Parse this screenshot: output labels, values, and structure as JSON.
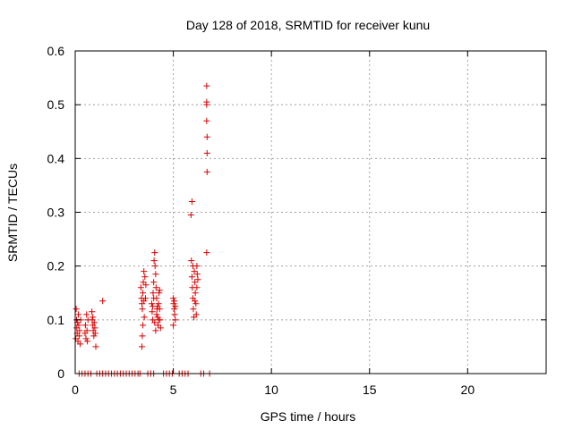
{
  "chart_data": {
    "type": "scatter",
    "title": "Day 128 of 2018, SRMTID for receiver kunu",
    "xlabel": "GPS time / hours",
    "ylabel": "SRMTID / TECUs",
    "xlim": [
      0,
      24
    ],
    "ylim": [
      0,
      0.6
    ],
    "xticks": [
      0,
      5,
      10,
      15,
      20
    ],
    "xtick_labels": [
      "0",
      "5",
      "10",
      "15",
      "20"
    ],
    "yticks": [
      0,
      0.1,
      0.2,
      0.3,
      0.4,
      0.5,
      0.6
    ],
    "ytick_labels": [
      "0",
      "0.1",
      "0.2",
      "0.3",
      "0.4",
      "0.5",
      "0.6"
    ],
    "grid": true,
    "marker": "plus",
    "color": "#dd0000",
    "series": [
      {
        "points": [
          [
            0.03,
            0.065
          ],
          [
            0.05,
            0.12
          ],
          [
            0.07,
            0.1
          ],
          [
            0.08,
            0.085
          ],
          [
            0.1,
            0.075
          ],
          [
            0.12,
            0.095
          ],
          [
            0.14,
            0.06
          ],
          [
            0.16,
            0.11
          ],
          [
            0.18,
            0.09
          ],
          [
            0.2,
            0.07
          ],
          [
            0.22,
            0.08
          ],
          [
            0.25,
            0.055
          ],
          [
            0.28,
            0.1
          ],
          [
            0.5,
            0.075
          ],
          [
            0.52,
            0.09
          ],
          [
            0.55,
            0.065
          ],
          [
            0.58,
            0.11
          ],
          [
            0.6,
            0.08
          ],
          [
            0.62,
            0.06
          ],
          [
            0.65,
            0.1
          ],
          [
            0.85,
            0.115
          ],
          [
            0.87,
            0.1
          ],
          [
            0.9,
            0.09
          ],
          [
            0.92,
            0.08
          ],
          [
            0.95,
            0.07
          ],
          [
            0.97,
            0.095
          ],
          [
            1.0,
            0.085
          ],
          [
            1.02,
            0.075
          ],
          [
            1.05,
            0.05
          ],
          [
            0.9,
            0.105
          ],
          [
            1.4,
            0.135
          ],
          [
            3.35,
            0.16
          ],
          [
            3.38,
            0.14
          ],
          [
            3.4,
            0.13
          ],
          [
            3.42,
            0.12
          ],
          [
            3.45,
            0.15
          ],
          [
            3.47,
            0.17
          ],
          [
            3.5,
            0.135
          ],
          [
            3.52,
            0.105
          ],
          [
            3.55,
            0.18
          ],
          [
            3.45,
            0.09
          ],
          [
            3.42,
            0.07
          ],
          [
            3.4,
            0.05
          ],
          [
            3.5,
            0.19
          ],
          [
            3.58,
            0.14
          ],
          [
            3.6,
            0.165
          ],
          [
            3.9,
            0.13
          ],
          [
            3.92,
            0.115
          ],
          [
            3.95,
            0.1
          ],
          [
            3.97,
            0.15
          ],
          [
            4.0,
            0.17
          ],
          [
            4.02,
            0.21
          ],
          [
            4.05,
            0.225
          ],
          [
            4.07,
            0.2
          ],
          [
            4.1,
            0.185
          ],
          [
            4.12,
            0.16
          ],
          [
            4.15,
            0.14
          ],
          [
            4.17,
            0.12
          ],
          [
            4.2,
            0.105
          ],
          [
            4.22,
            0.09
          ],
          [
            4.25,
            0.13
          ],
          [
            4.27,
            0.15
          ],
          [
            4.3,
            0.12
          ],
          [
            4.32,
            0.1
          ],
          [
            4.35,
            0.085
          ],
          [
            4.1,
            0.08
          ],
          [
            4.05,
            0.095
          ],
          [
            4.15,
            0.11
          ],
          [
            4.2,
            0.125
          ],
          [
            4.3,
            0.155
          ],
          [
            4.0,
            0.14
          ],
          [
            3.95,
            0.125
          ],
          [
            4.25,
            0.1
          ],
          [
            5.0,
            0.14
          ],
          [
            5.02,
            0.13
          ],
          [
            5.05,
            0.12
          ],
          [
            5.07,
            0.11
          ],
          [
            5.1,
            0.1
          ],
          [
            5.0,
            0.09
          ],
          [
            5.05,
            0.135
          ],
          [
            5.1,
            0.125
          ],
          [
            5.9,
            0.295
          ],
          [
            5.95,
            0.32
          ],
          [
            5.92,
            0.21
          ],
          [
            5.95,
            0.18
          ],
          [
            5.97,
            0.16
          ],
          [
            6.0,
            0.14
          ],
          [
            6.02,
            0.12
          ],
          [
            6.05,
            0.105
          ],
          [
            6.07,
            0.19
          ],
          [
            6.1,
            0.17
          ],
          [
            6.12,
            0.15
          ],
          [
            6.15,
            0.13
          ],
          [
            6.17,
            0.11
          ],
          [
            6.2,
            0.2
          ],
          [
            6.22,
            0.185
          ],
          [
            6.25,
            0.175
          ],
          [
            6.0,
            0.2
          ],
          [
            6.1,
            0.135
          ],
          [
            6.2,
            0.16
          ],
          [
            6.7,
            0.535
          ],
          [
            6.7,
            0.505
          ],
          [
            6.7,
            0.5
          ],
          [
            6.7,
            0.47
          ],
          [
            6.72,
            0.44
          ],
          [
            6.72,
            0.41
          ],
          [
            6.72,
            0.375
          ],
          [
            6.7,
            0.225
          ]
        ]
      },
      {
        "points": [
          [
            0.2,
            0
          ],
          [
            0.35,
            0
          ],
          [
            0.5,
            0
          ],
          [
            0.65,
            0
          ],
          [
            0.8,
            0
          ],
          [
            1.1,
            0
          ],
          [
            1.25,
            0
          ],
          [
            1.4,
            0
          ],
          [
            1.55,
            0
          ],
          [
            1.7,
            0
          ],
          [
            1.85,
            0
          ],
          [
            2.0,
            0
          ],
          [
            2.15,
            0
          ],
          [
            2.3,
            0
          ],
          [
            2.45,
            0
          ],
          [
            2.6,
            0
          ],
          [
            2.75,
            0
          ],
          [
            2.9,
            0
          ],
          [
            3.05,
            0
          ],
          [
            3.2,
            0
          ],
          [
            3.3,
            0
          ],
          [
            3.7,
            0
          ],
          [
            3.85,
            0
          ],
          [
            4.0,
            0
          ],
          [
            4.5,
            0
          ],
          [
            4.65,
            0
          ],
          [
            4.8,
            0
          ],
          [
            4.95,
            0
          ],
          [
            5.3,
            0
          ],
          [
            5.45,
            0
          ],
          [
            5.6,
            0
          ],
          [
            5.75,
            0
          ],
          [
            6.4,
            0
          ],
          [
            6.55,
            0
          ],
          [
            6.85,
            0
          ]
        ]
      }
    ]
  }
}
